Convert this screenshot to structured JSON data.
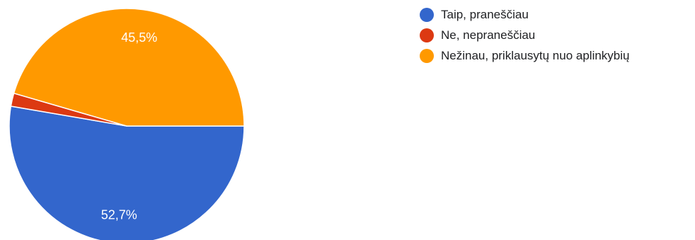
{
  "chart_data": {
    "type": "pie",
    "title": "",
    "legend_position": "right",
    "categories": [
      "Taip, praneščiau",
      "Ne, nepraneščiau",
      "Nežinau, priklausytų nuo aplinkybių"
    ],
    "values": [
      52.7,
      1.8,
      45.5
    ],
    "value_labels": [
      "52,7%",
      "",
      "45,5%"
    ],
    "colors": [
      "#3366cc",
      "#dc3912",
      "#ff9900"
    ]
  }
}
